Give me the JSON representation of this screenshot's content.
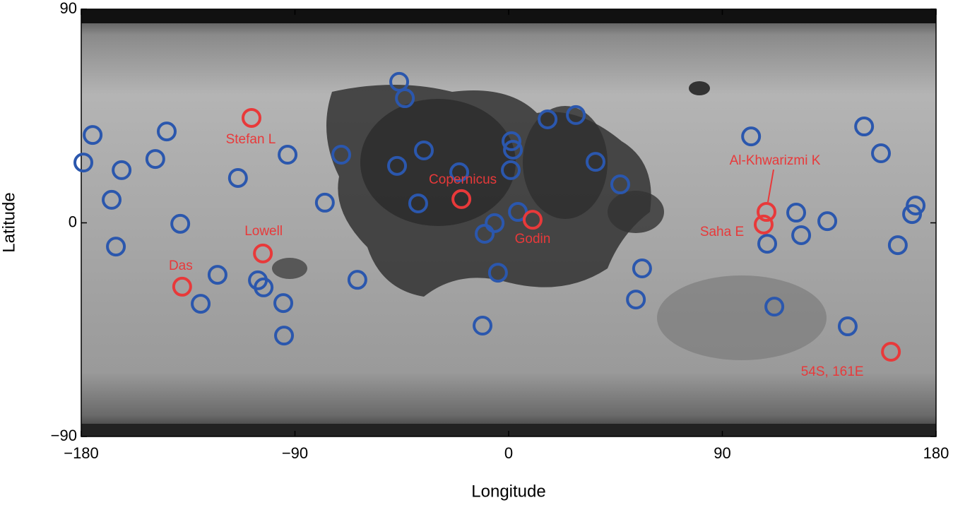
{
  "chart_data": {
    "type": "scatter",
    "x_label": "Longitude",
    "y_label": "Latitude",
    "xlim": [
      -180,
      180
    ],
    "ylim": [
      -90,
      90
    ],
    "xticks": [
      {
        "value": -180,
        "label": "−180"
      },
      {
        "value": -90,
        "label": "−90"
      },
      0,
      90,
      180
    ],
    "yticks": [
      {
        "value": -90,
        "label": "−90"
      },
      0,
      90
    ],
    "series": [
      {
        "color": "#2b57ad",
        "x": [
          -175.2,
          -179.1,
          -163.0,
          -167.2,
          -165.4,
          -144.0,
          -148.8,
          -138.3,
          -114.0,
          -93.1,
          -122.6,
          -129.7,
          -105.6,
          -103.2,
          -94.9,
          -94.6,
          -77.4,
          -70.5,
          -63.7,
          -46.1,
          -43.7,
          -47.0,
          -35.7,
          -38.1,
          -20.8,
          -10.1,
          -5.9,
          -4.5,
          -11.0,
          1.2,
          1.8,
          0.9,
          3.9,
          16.4,
          28.3,
          36.6,
          47.0,
          56.2,
          53.6,
          102.1,
          121.1,
          123.2,
          134.2,
          108.9,
          111.9,
          149.7,
          156.8,
          171.4,
          169.9,
          163.9,
          142.8
        ],
        "values": [
          37.0,
          25.4,
          22.2,
          9.7,
          -10.0,
          38.5,
          26.9,
          -0.4,
          18.9,
          28.7,
          -21.9,
          -34.1,
          -24.2,
          -27.2,
          -33.8,
          -47.5,
          8.5,
          28.7,
          -24.0,
          59.4,
          52.5,
          24.0,
          30.5,
          8.2,
          21.3,
          -4.6,
          -0.1,
          -21.0,
          -43.3,
          34.4,
          30.8,
          22.2,
          4.6,
          43.6,
          45.4,
          25.7,
          16.2,
          -19.2,
          -32.3,
          36.4,
          4.3,
          -5.2,
          0.7,
          -8.8,
          -35.3,
          40.6,
          29.3,
          7.3,
          3.7,
          -9.4,
          -43.6
        ]
      },
      {
        "color": "#e8393a",
        "labels": [
          "Stefan L",
          "Copernicus",
          "Godin",
          "Lowell",
          "Das",
          "Al-Khwarizmi K",
          "Saha E",
          "54S, 161E"
        ],
        "x": [
          -108.3,
          -19.9,
          10.1,
          -103.5,
          -137.5,
          108.6,
          107.4,
          161.0
        ],
        "values": [
          44.2,
          10.0,
          1.3,
          -12.9,
          -26.9,
          4.6,
          -0.7,
          -54.3
        ]
      }
    ]
  }
}
